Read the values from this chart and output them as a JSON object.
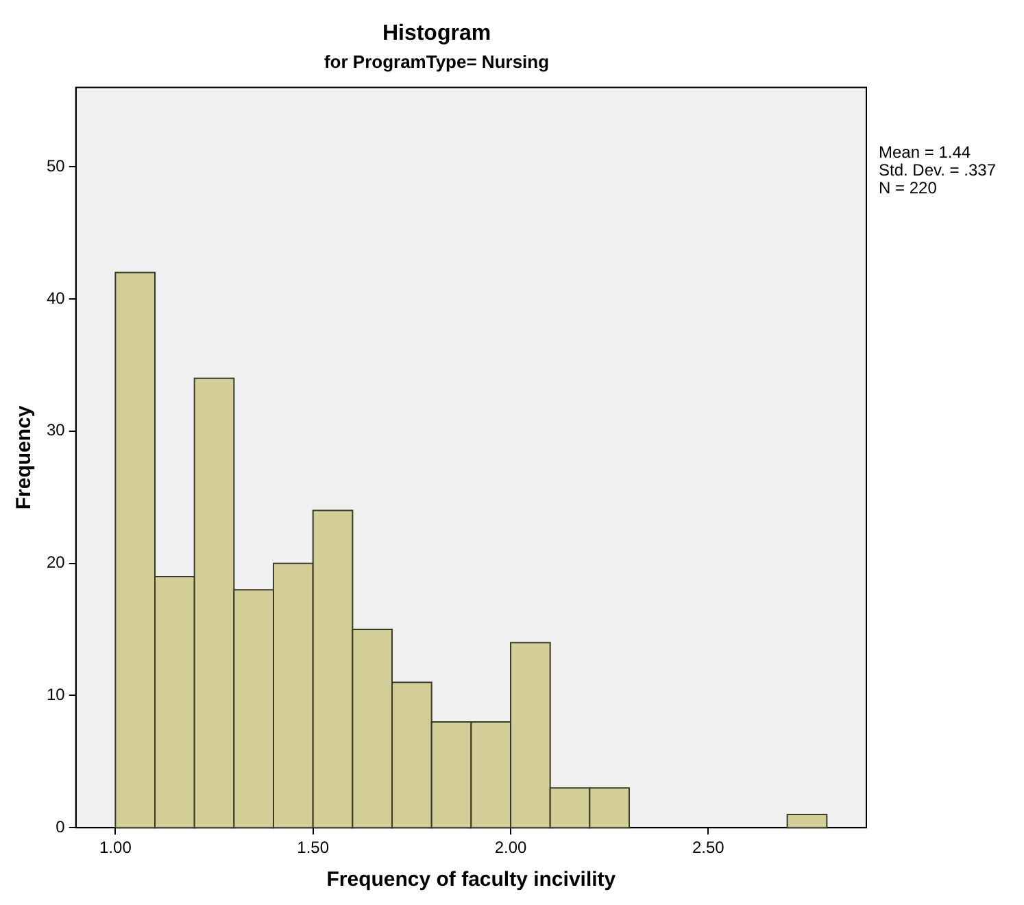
{
  "chart_data": {
    "type": "histogram",
    "title": "Histogram",
    "subtitle": "for ProgramType= Nursing",
    "xlabel": "Frequency of faculty incivility",
    "ylabel": "Frequency",
    "bins": [
      1.0,
      1.1,
      1.2,
      1.3,
      1.4,
      1.5,
      1.6,
      1.7,
      1.8,
      1.9,
      2.0,
      2.1,
      2.2,
      2.3,
      2.4,
      2.5,
      2.6,
      2.7,
      2.8
    ],
    "values": [
      42,
      19,
      34,
      18,
      20,
      24,
      15,
      11,
      8,
      8,
      14,
      3,
      3,
      0,
      0,
      0,
      0,
      1
    ],
    "color": "#d3ce97",
    "xlim": [
      0.9,
      2.9
    ],
    "xticks": [
      {
        "value": 1,
        "label": "1.00"
      },
      {
        "value": 1.5,
        "label": "1.50"
      },
      {
        "value": 2,
        "label": "2.00"
      },
      {
        "value": 2.5,
        "label": "2.50"
      }
    ],
    "ylim": [
      0,
      56
    ],
    "yticks": [
      0,
      10,
      20,
      30,
      40,
      50
    ],
    "annotations": [
      "Mean = 1.44",
      "Std. Dev. = .337",
      "N = 220"
    ],
    "grid": false,
    "legend": false
  }
}
